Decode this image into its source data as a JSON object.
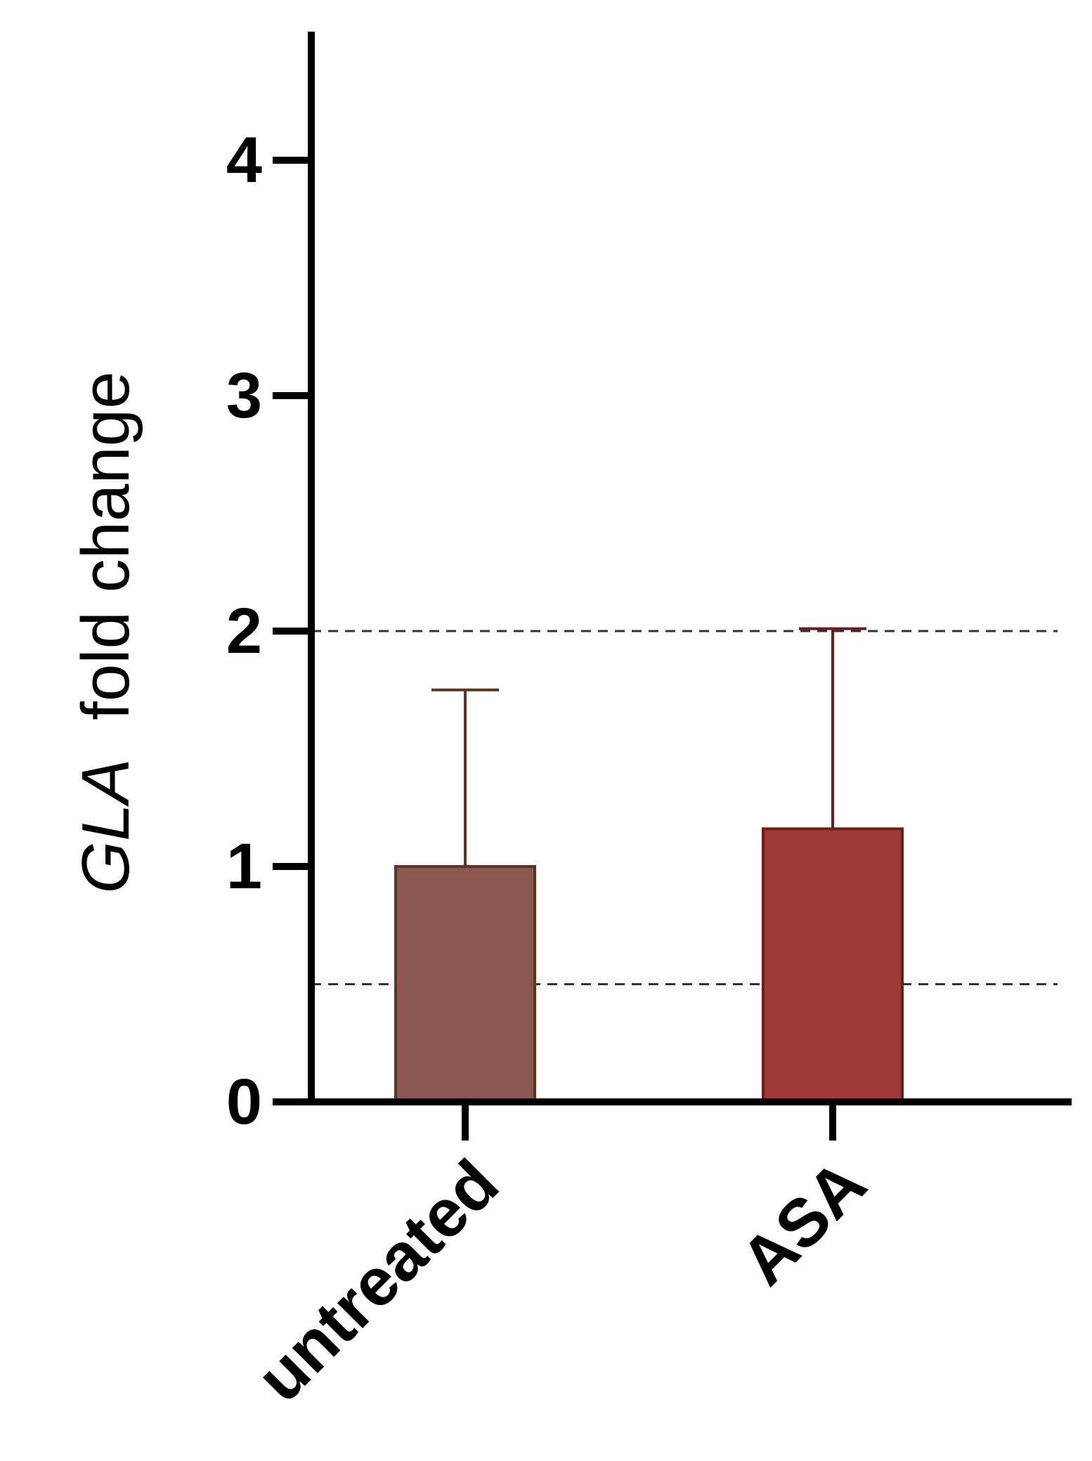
{
  "chart_data": {
    "type": "bar",
    "title": "",
    "xlabel": "",
    "ylabel": {
      "gene": "GLA",
      "suffix": "fold change"
    },
    "categories": [
      "untreated",
      "ASA"
    ],
    "series": [
      {
        "values": [
          1.0,
          1.16
        ],
        "error_upper": [
          1.75,
          2.01
        ],
        "colors": [
          "#8b5750",
          "#a03a38"
        ],
        "edge_colors": [
          "#5a3622",
          "#6a2018"
        ]
      }
    ],
    "reference_lines": [
      2.0,
      0.5
    ],
    "yticks": [
      "0",
      "1",
      "2",
      "3",
      "4"
    ],
    "ylim": [
      0,
      4.5
    ],
    "grid": false,
    "legend": "none"
  }
}
